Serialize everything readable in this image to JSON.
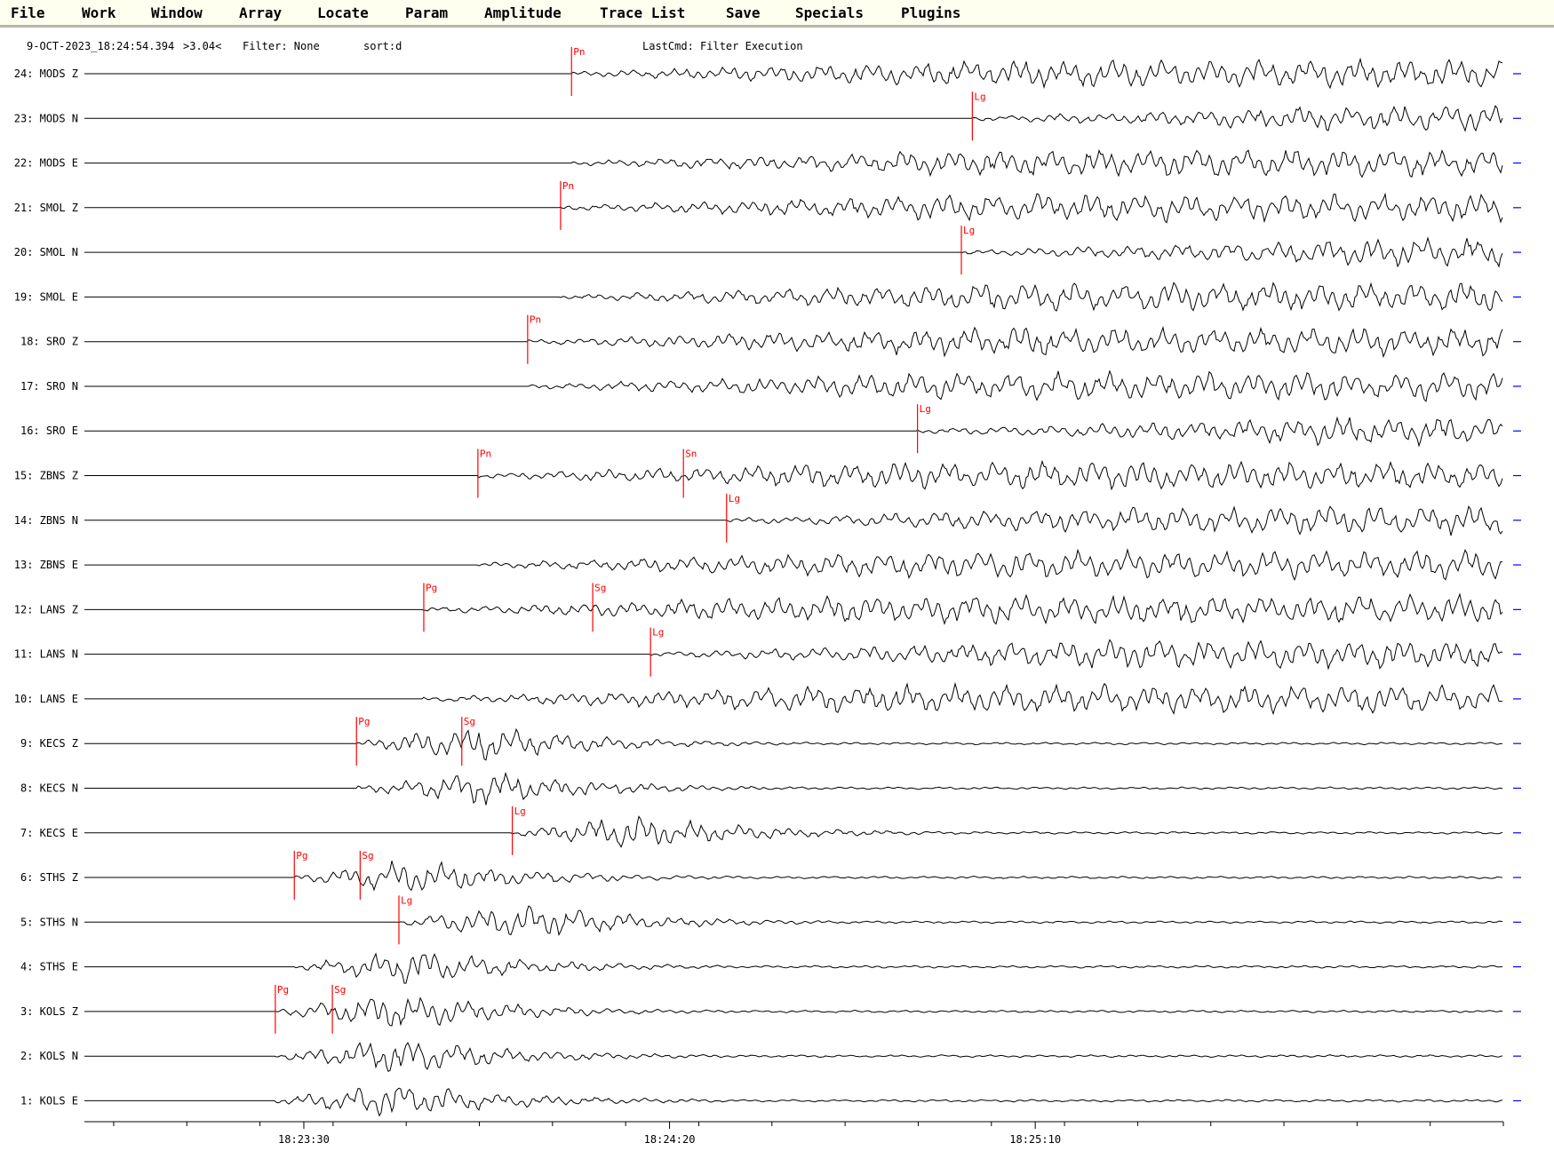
{
  "menu": [
    "File",
    "Work",
    "Window",
    "Array",
    "Locate",
    "Param",
    "Amplitude",
    "Trace List",
    "Save",
    "Specials",
    "Plugins"
  ],
  "header": {
    "datetime": "9-OCT-2023_18:24:54.394",
    "scale": ">3.04<",
    "filter": "Filter: None",
    "sort": "sort:d",
    "lastcmd": "LastCmd: Filter Execution"
  },
  "traces": [
    {
      "label": "24: MODS Z",
      "picks": [
        {
          "phase": "Pn",
          "time": "18:24:06.6"
        }
      ]
    },
    {
      "label": "23: MODS N",
      "picks": [
        {
          "phase": "Lg",
          "time": "18:25:01.4"
        }
      ]
    },
    {
      "label": "22: MODS E",
      "picks": []
    },
    {
      "label": "21: SMOL Z",
      "picks": [
        {
          "phase": "Pn",
          "time": "18:24:05.1"
        }
      ]
    },
    {
      "label": "20: SMOL N",
      "picks": [
        {
          "phase": "Lg",
          "time": "18:24:59.9"
        }
      ]
    },
    {
      "label": "19: SMOL E",
      "picks": []
    },
    {
      "label": "18: SRO Z",
      "picks": [
        {
          "phase": "Pn",
          "time": "18:24:00.6"
        }
      ]
    },
    {
      "label": "17: SRO N",
      "picks": []
    },
    {
      "label": "16: SRO E",
      "picks": [
        {
          "phase": "Lg",
          "time": "18:24:53.9"
        }
      ]
    },
    {
      "label": "15: ZBNS Z",
      "picks": [
        {
          "phase": "Pn",
          "time": "18:23:53.8"
        },
        {
          "phase": "Sn",
          "time": "18:24:21.9"
        }
      ]
    },
    {
      "label": "14: ZBNS N",
      "picks": [
        {
          "phase": "Lg",
          "time": "18:24:27.8"
        }
      ]
    },
    {
      "label": "13: ZBNS E",
      "picks": []
    },
    {
      "label": "12: LANS Z",
      "picks": [
        {
          "phase": "Pg",
          "time": "18:23:46.4"
        },
        {
          "phase": "Sg",
          "time": "18:24:09.5"
        }
      ]
    },
    {
      "label": "11: LANS N",
      "picks": [
        {
          "phase": "Lg",
          "time": "18:24:17.4"
        }
      ]
    },
    {
      "label": "10: LANS E",
      "picks": []
    },
    {
      "label": "9: KECS Z",
      "picks": [
        {
          "phase": "Pg",
          "time": "18:23:37.2"
        },
        {
          "phase": "Sg",
          "time": "18:23:51.6"
        }
      ]
    },
    {
      "label": "8: KECS N",
      "picks": []
    },
    {
      "label": "7: KECS E",
      "picks": [
        {
          "phase": "Lg",
          "time": "18:23:58.5"
        }
      ]
    },
    {
      "label": "6: STHS Z",
      "picks": [
        {
          "phase": "Pg",
          "time": "18:23:28.7"
        },
        {
          "phase": "Sg",
          "time": "18:23:37.7"
        }
      ]
    },
    {
      "label": "5: STHS N",
      "picks": [
        {
          "phase": "Lg",
          "time": "18:23:43.0"
        }
      ]
    },
    {
      "label": "4: STHS E",
      "picks": []
    },
    {
      "label": "3: KOLS Z",
      "picks": [
        {
          "phase": "Pg",
          "time": "18:23:26.1"
        },
        {
          "phase": "Sg",
          "time": "18:23:33.9"
        }
      ]
    },
    {
      "label": "2: KOLS N",
      "picks": []
    },
    {
      "label": "1: KOLS E",
      "picks": []
    }
  ],
  "time_axis": {
    "labels": [
      "18:23:30",
      "18:24:20",
      "18:25:10"
    ],
    "start": "18:23:00",
    "end": "18:26:14"
  },
  "colors": {
    "menu_bg": "#fffff0",
    "trace": "#000000",
    "pick": "#ff0000",
    "end_marker": "#0000ff",
    "alt_marker": "#00b0b0"
  }
}
